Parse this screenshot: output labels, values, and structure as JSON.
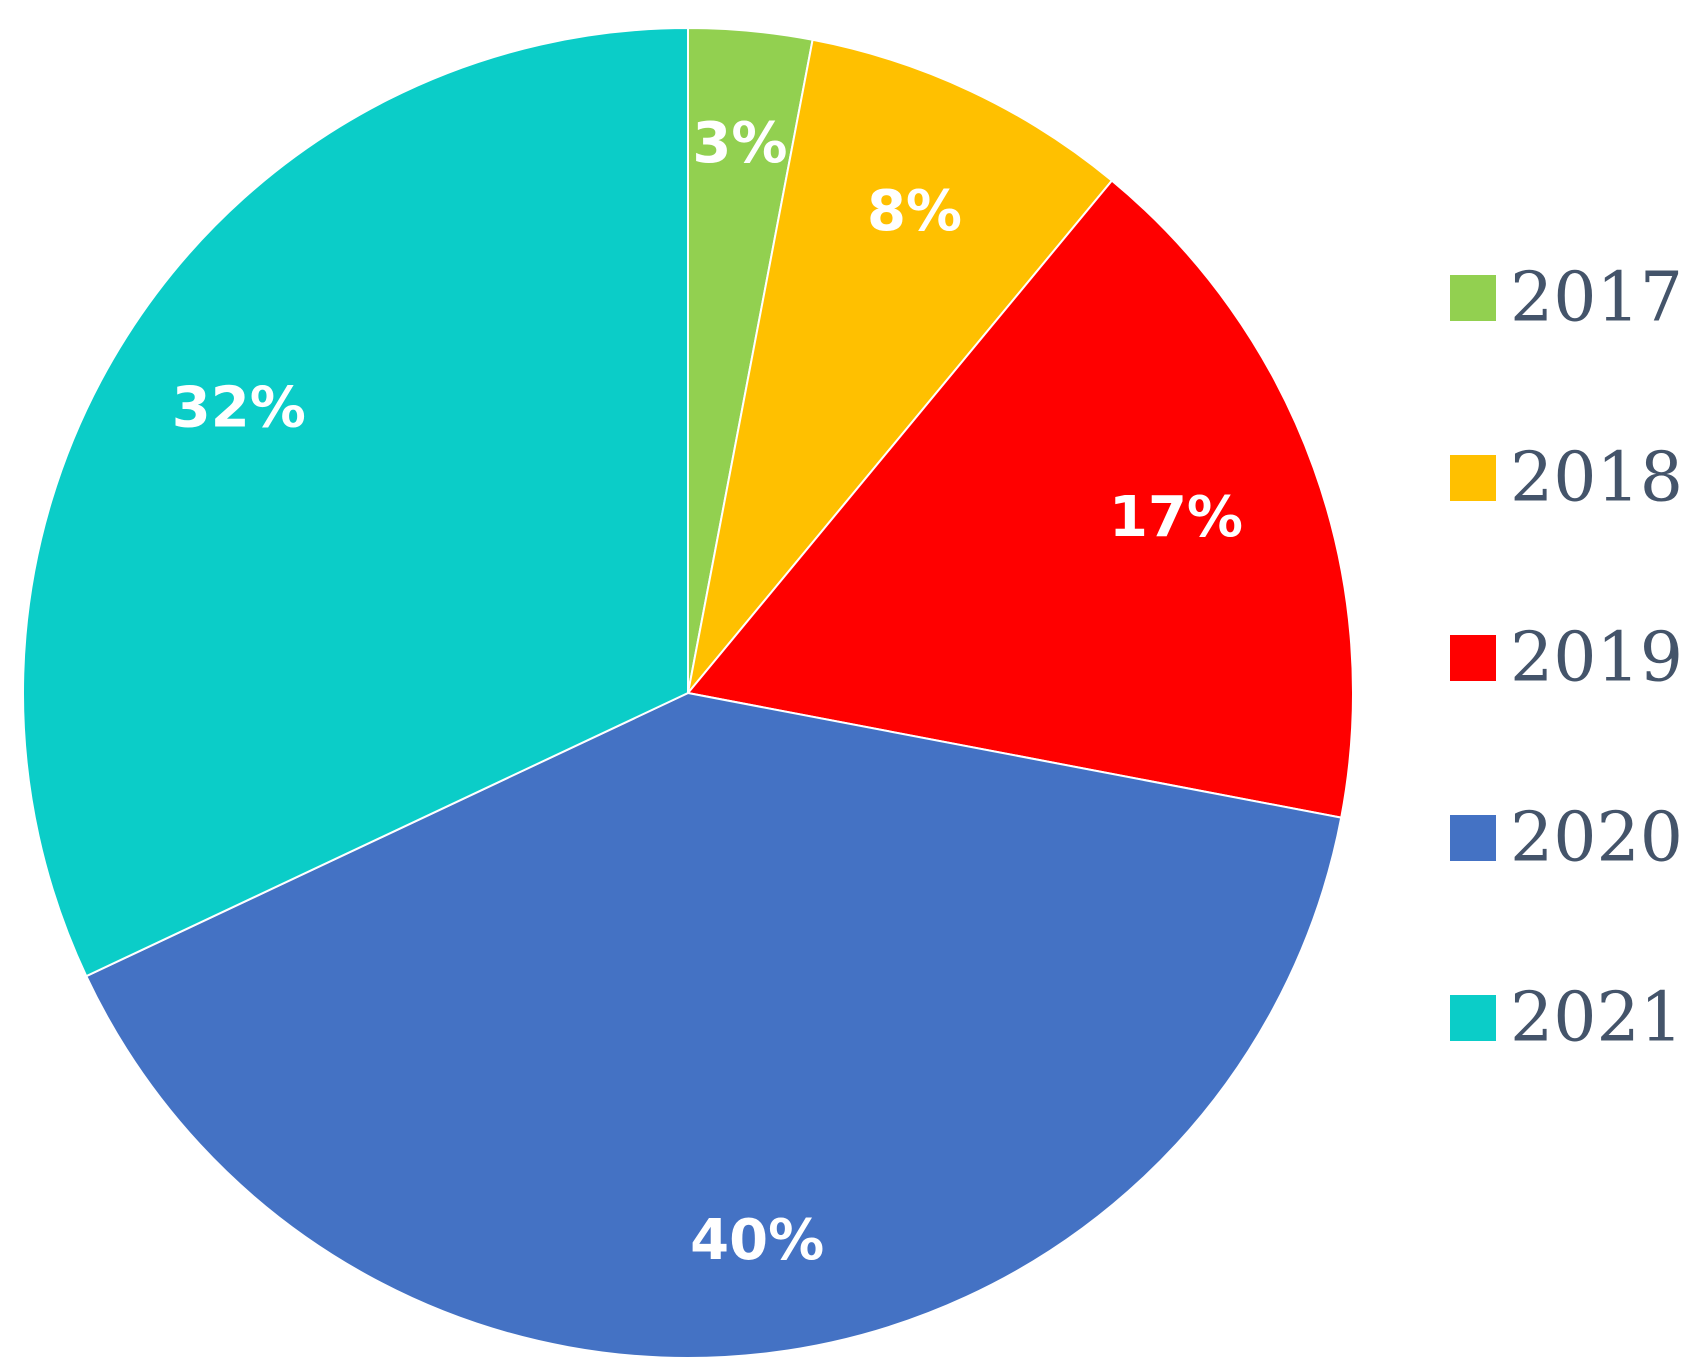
{
  "chart_data": {
    "type": "pie",
    "title": "",
    "categories": [
      "2017",
      "2018",
      "2019",
      "2020",
      "2021"
    ],
    "values": [
      3,
      8,
      17,
      40,
      32
    ],
    "labels": [
      "3%",
      "8%",
      "17%",
      "40%",
      "32%"
    ],
    "colors": [
      "#92d050",
      "#ffc000",
      "#ff0000",
      "#4472c4",
      "#0bcdc8"
    ],
    "start_angle": "12 o'clock",
    "direction": "clockwise",
    "legend": {
      "placement": "right",
      "entries": [
        "2017",
        "2018",
        "2019",
        "2020",
        "2021"
      ]
    }
  }
}
